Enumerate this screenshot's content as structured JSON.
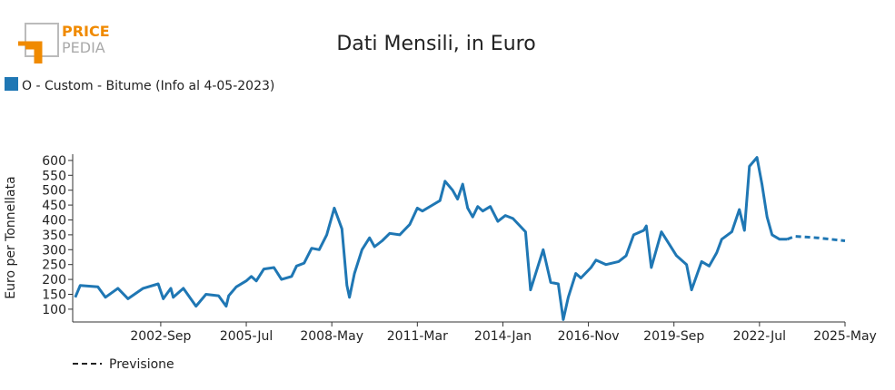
{
  "logo": {
    "top": "PRICE",
    "bottom": "PEDIA"
  },
  "chart_data": {
    "type": "line",
    "title": "Dati Mensili, in Euro",
    "y_label": "Euro per Tonnellata",
    "xlim": [
      "1999-10",
      "2025-05"
    ],
    "xticks": [
      {
        "value": "2002-09",
        "label": "2002-Sep"
      },
      {
        "value": "2005-07",
        "label": "2005-Jul"
      },
      {
        "value": "2008-05",
        "label": "2008-May"
      },
      {
        "value": "2011-03",
        "label": "2011-Mar"
      },
      {
        "value": "2014-01",
        "label": "2014-Jan"
      },
      {
        "value": "2016-11",
        "label": "2016-Nov"
      },
      {
        "value": "2019-09",
        "label": "2019-Sep"
      },
      {
        "value": "2022-07",
        "label": "2022-Jul"
      },
      {
        "value": "2025-05",
        "label": "2025-May"
      }
    ],
    "ylim": [
      57,
      621
    ],
    "yticks": [
      100,
      150,
      200,
      250,
      300,
      350,
      400,
      450,
      500,
      550,
      600
    ],
    "series": [
      {
        "name": "O - Custom - Bitume (Info al 4-05-2023)",
        "color": "#1f77b4",
        "dashed": false,
        "x": [
          "1999-11",
          "2000-01",
          "2000-08",
          "2000-11",
          "2001-04",
          "2001-08",
          "2002-02",
          "2002-08",
          "2002-10",
          "2003-01",
          "2003-02",
          "2003-06",
          "2003-11",
          "2004-03",
          "2004-08",
          "2004-11",
          "2004-12",
          "2005-03",
          "2005-07",
          "2005-09",
          "2005-11",
          "2006-02",
          "2006-06",
          "2006-09",
          "2007-01",
          "2007-03",
          "2007-06",
          "2007-09",
          "2007-12",
          "2008-03",
          "2008-06",
          "2008-09",
          "2008-11",
          "2008-12",
          "2009-02",
          "2009-05",
          "2009-08",
          "2009-10",
          "2010-01",
          "2010-04",
          "2010-08",
          "2010-12",
          "2011-03",
          "2011-05",
          "2011-09",
          "2011-12",
          "2012-02",
          "2012-05",
          "2012-07",
          "2012-09",
          "2012-11",
          "2013-01",
          "2013-03",
          "2013-05",
          "2013-08",
          "2013-11",
          "2014-02",
          "2014-05",
          "2014-10",
          "2014-12",
          "2015-05",
          "2015-08",
          "2015-11",
          "2016-01",
          "2016-03",
          "2016-06",
          "2016-08",
          "2016-12",
          "2017-02",
          "2017-06",
          "2017-11",
          "2018-02",
          "2018-05",
          "2018-09",
          "2018-10",
          "2018-12",
          "2019-04",
          "2019-07",
          "2019-10",
          "2020-02",
          "2020-04",
          "2020-08",
          "2020-11",
          "2021-02",
          "2021-04",
          "2021-08",
          "2021-11",
          "2022-01",
          "2022-03",
          "2022-06",
          "2022-08",
          "2022-10",
          "2022-12",
          "2023-03",
          "2023-06"
        ],
        "values": [
          140,
          180,
          175,
          140,
          170,
          135,
          170,
          185,
          135,
          170,
          140,
          170,
          110,
          150,
          145,
          110,
          145,
          175,
          195,
          210,
          195,
          235,
          240,
          200,
          210,
          245,
          255,
          305,
          300,
          350,
          440,
          370,
          180,
          140,
          220,
          300,
          340,
          310,
          330,
          355,
          350,
          385,
          440,
          430,
          450,
          465,
          530,
          500,
          470,
          520,
          440,
          410,
          445,
          430,
          445,
          395,
          415,
          405,
          360,
          165,
          300,
          190,
          185,
          65,
          140,
          220,
          205,
          240,
          265,
          250,
          260,
          280,
          350,
          365,
          380,
          240,
          360,
          320,
          280,
          250,
          165,
          260,
          245,
          290,
          335,
          360,
          435,
          365,
          580,
          610,
          520,
          410,
          350,
          335,
          335
        ]
      },
      {
        "name": "Previsione",
        "color": "#1f77b4",
        "dashed": true,
        "x": [
          "2023-06",
          "2023-09",
          "2024-06",
          "2025-05"
        ],
        "values": [
          335,
          345,
          340,
          330
        ]
      }
    ]
  }
}
